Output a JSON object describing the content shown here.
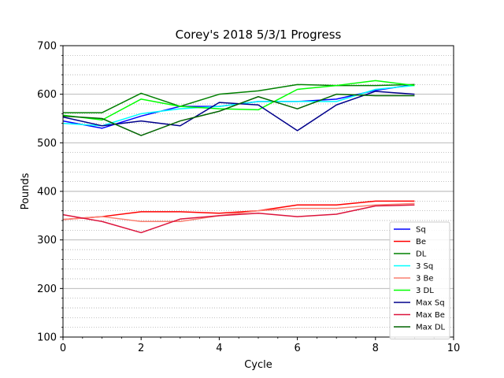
{
  "chart_data": {
    "type": "line",
    "title": "Corey's 2018 5/3/1 Progress",
    "xlabel": "Cycle",
    "ylabel": "Pounds",
    "xlim": [
      0,
      10
    ],
    "ylim": [
      100,
      700
    ],
    "xticks": [
      0,
      2,
      4,
      6,
      8,
      10
    ],
    "yticks": [
      100,
      200,
      300,
      400,
      500,
      600,
      700
    ],
    "x_minor_ticks": [
      0.5,
      1,
      1.5,
      2.5,
      3,
      3.5,
      4.5,
      5,
      5.5,
      6.5,
      7,
      7.5,
      8.5,
      9,
      9.5
    ],
    "y_minor_grid_step": 20,
    "grid": {
      "major_y": true,
      "minor_y_dotted": true
    },
    "legend_position": "lower-right",
    "x": [
      0,
      1,
      2,
      3,
      4,
      5,
      6,
      7,
      8,
      9
    ],
    "series": [
      {
        "name": "Sq",
        "color": "#0000ff",
        "values": [
          545,
          530,
          555,
          575,
          575,
          585,
          585,
          590,
          608,
          620
        ]
      },
      {
        "name": "Be",
        "color": "#ff0000",
        "values": [
          342,
          348,
          358,
          358,
          355,
          360,
          372,
          372,
          380,
          380
        ]
      },
      {
        "name": "DL",
        "color": "#008000",
        "values": [
          562,
          562,
          602,
          575,
          600,
          607,
          620,
          618,
          618,
          620
        ]
      },
      {
        "name": "3 Sq",
        "color": "#00ffff",
        "values": [
          540,
          535,
          560,
          570,
          575,
          585,
          585,
          585,
          610,
          618
        ]
      },
      {
        "name": "3 Be",
        "color": "#fa8072",
        "values": [
          342,
          348,
          338,
          338,
          350,
          360,
          365,
          365,
          372,
          375
        ]
      },
      {
        "name": "3 DL",
        "color": "#00ff00",
        "values": [
          557,
          547,
          590,
          575,
          570,
          568,
          610,
          618,
          628,
          618
        ]
      },
      {
        "name": "Max Sq",
        "color": "#00008b",
        "values": [
          553,
          535,
          545,
          535,
          583,
          578,
          525,
          578,
          606,
          600
        ]
      },
      {
        "name": "Max Be",
        "color": "#dc143c",
        "values": [
          352,
          338,
          315,
          343,
          350,
          355,
          348,
          353,
          370,
          372
        ]
      },
      {
        "name": "Max DL",
        "color": "#006400",
        "values": [
          555,
          550,
          515,
          545,
          565,
          595,
          570,
          600,
          597,
          597
        ]
      }
    ]
  }
}
